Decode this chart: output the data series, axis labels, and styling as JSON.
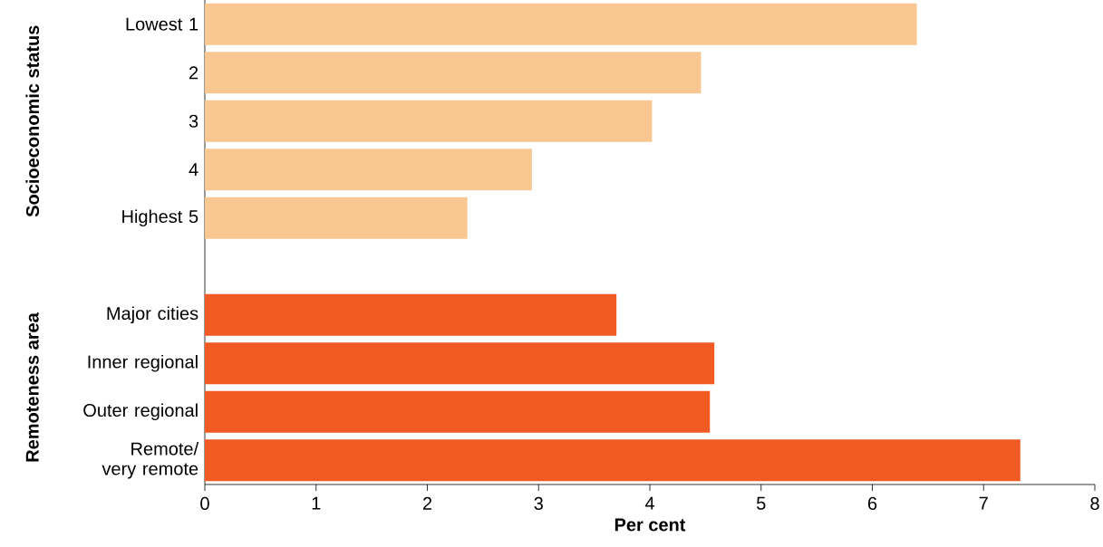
{
  "chart_data": {
    "type": "bar",
    "orientation": "horizontal",
    "xlabel": "Per cent",
    "categories": [
      "Lowest 1",
      "2",
      "3",
      "4",
      "Highest 5",
      null,
      "Major cities",
      "Inner regional",
      "Outer regional",
      "Remote/ very remote"
    ],
    "series": [
      {
        "color": "#f9c892",
        "values": [
          6.4,
          4.46,
          4.02,
          2.94,
          2.36,
          null,
          null,
          null,
          null,
          null
        ]
      },
      {
        "color": "#f15a22",
        "values": [
          null,
          null,
          null,
          null,
          null,
          null,
          3.7,
          4.58,
          4.54,
          7.33
        ]
      }
    ],
    "xlim": [
      0,
      8
    ],
    "xticks": [
      0,
      1,
      2,
      3,
      4,
      5,
      6,
      7,
      8
    ],
    "grid": false,
    "annotations": [
      "Socioeconomic status",
      "Remoteness area"
    ]
  }
}
